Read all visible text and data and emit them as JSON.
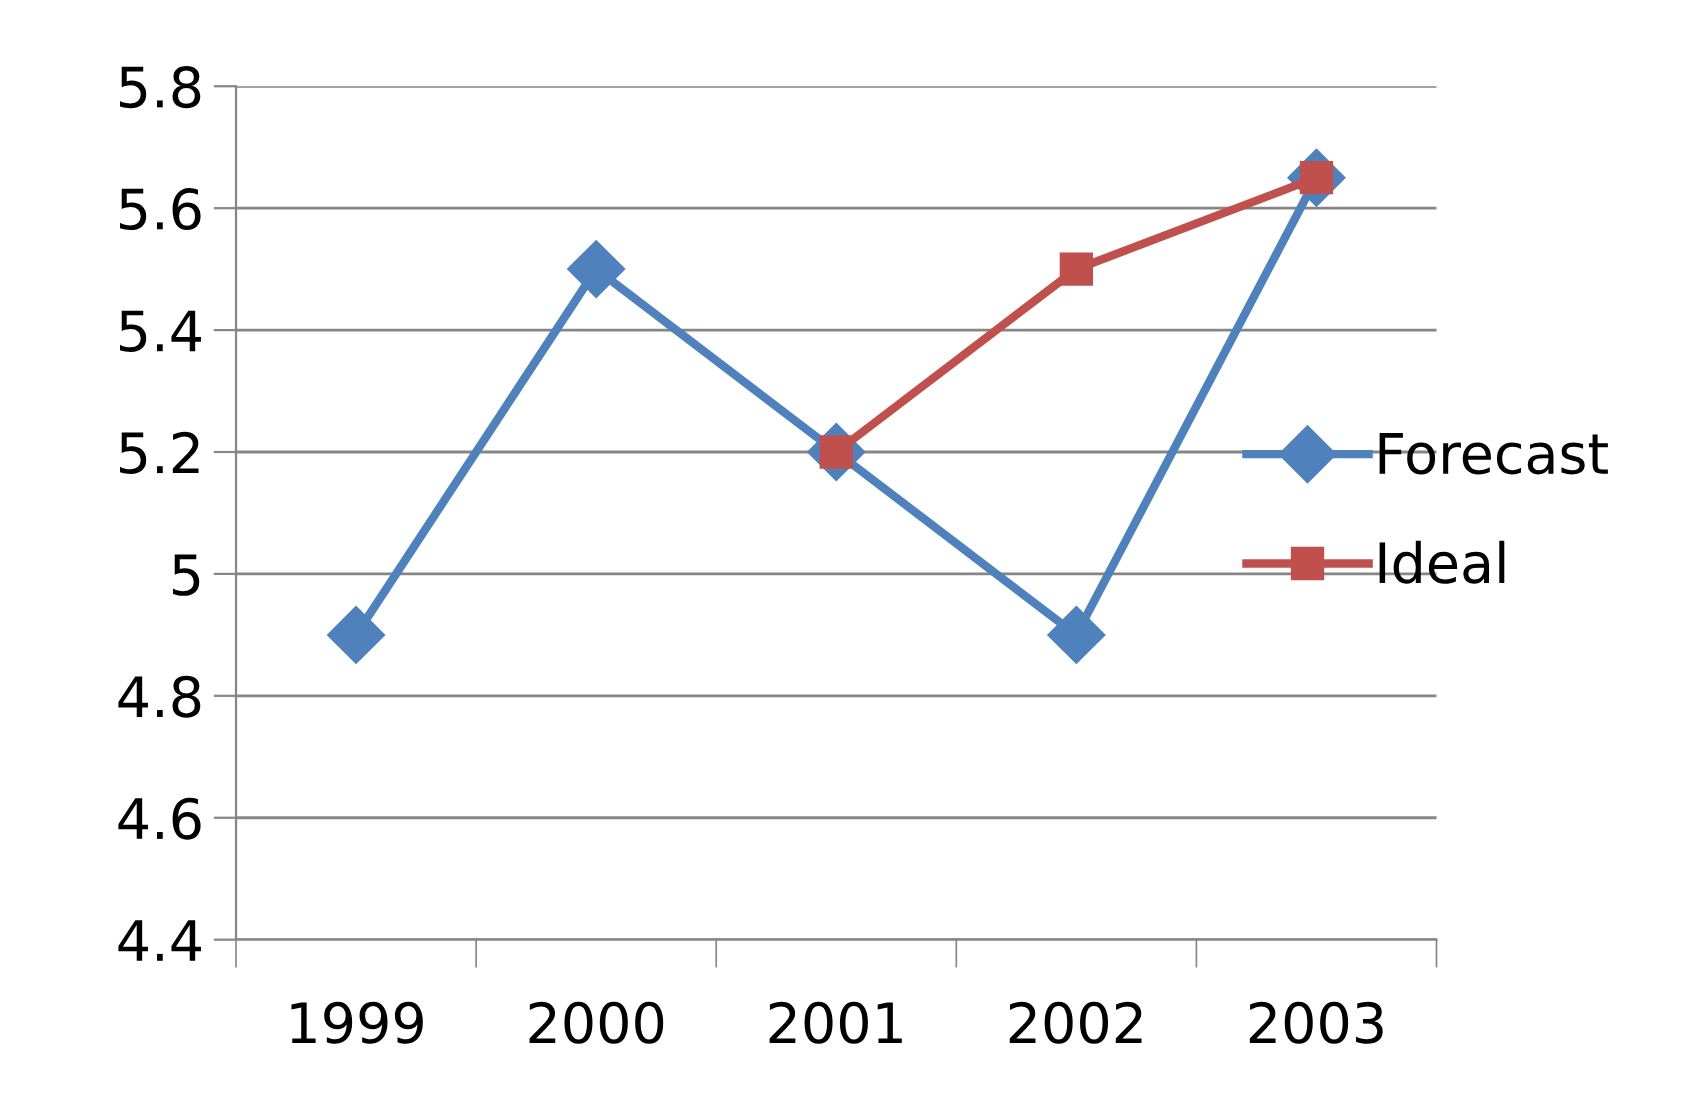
{
  "chart_data": {
    "type": "line",
    "categories": [
      "1999",
      "2000",
      "2001",
      "2002",
      "2003"
    ],
    "series": [
      {
        "name": "Forecast",
        "color": "#4f81bd",
        "marker": "diamond",
        "values": [
          4.9,
          5.5,
          5.2,
          4.9,
          5.65
        ]
      },
      {
        "name": "Ideal",
        "color": "#c0504d",
        "marker": "square",
        "values": [
          null,
          null,
          5.2,
          5.5,
          5.65
        ]
      }
    ],
    "ylim": [
      4.4,
      5.8
    ],
    "yticks": [
      4.4,
      4.6,
      4.8,
      5,
      5.2,
      5.4,
      5.6,
      5.8
    ],
    "grid": "y",
    "legend": "right",
    "line_style": "solid"
  }
}
